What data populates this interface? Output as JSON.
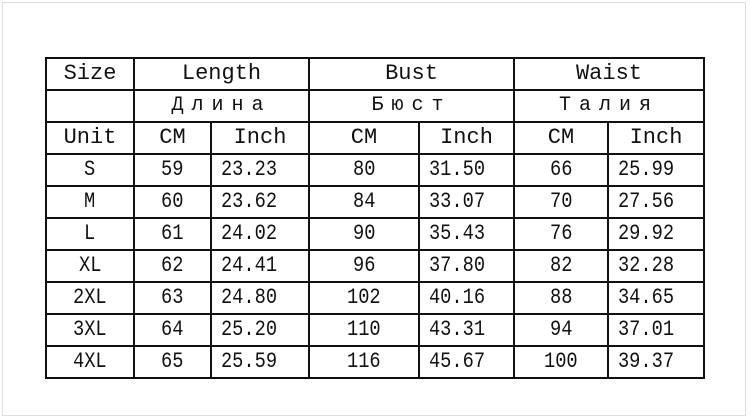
{
  "header": {
    "size": "Size",
    "groups": [
      "Length",
      "Bust",
      "Waist"
    ],
    "groups_ru": [
      "Длина",
      "Бюст",
      "Талия"
    ],
    "unit": "Unit",
    "units": [
      "CM",
      "Inch",
      "CM",
      "Inch",
      "CM",
      "Inch"
    ]
  },
  "rows": [
    {
      "size": "S",
      "values": [
        "59",
        "23.23",
        "80",
        "31.50",
        "66",
        "25.99"
      ]
    },
    {
      "size": "M",
      "values": [
        "60",
        "23.62",
        "84",
        "33.07",
        "70",
        "27.56"
      ]
    },
    {
      "size": "L",
      "values": [
        "61",
        "24.02",
        "90",
        "35.43",
        "76",
        "29.92"
      ]
    },
    {
      "size": "XL",
      "values": [
        "62",
        "24.41",
        "96",
        "37.80",
        "82",
        "32.28"
      ]
    },
    {
      "size": "2XL",
      "values": [
        "63",
        "24.80",
        "102",
        "40.16",
        "88",
        "34.65"
      ]
    },
    {
      "size": "3XL",
      "values": [
        "64",
        "25.20",
        "110",
        "43.31",
        "94",
        "37.01"
      ]
    },
    {
      "size": "4XL",
      "values": [
        "65",
        "25.59",
        "116",
        "45.67",
        "100",
        "39.37"
      ]
    }
  ]
}
